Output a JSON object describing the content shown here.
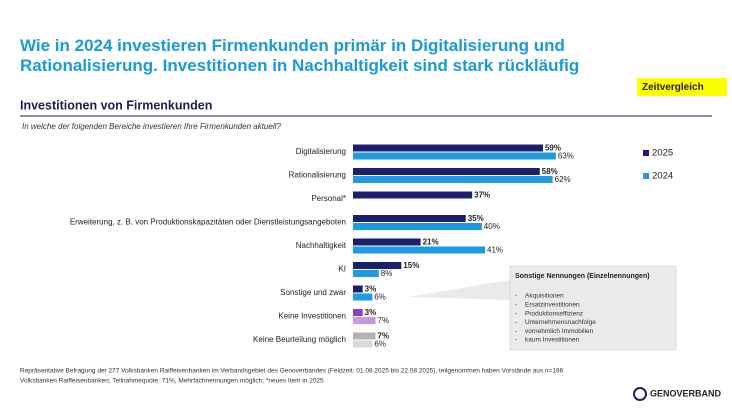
{
  "header": {
    "title": [
      "Wie in 2024 investieren Firmenkunden primär in Digitalisierung und",
      "Rationalisierung. Investitionen in Nachhaltigkeit sind stark rückläufig"
    ]
  },
  "badge": "Zeitvergleich",
  "chart_data": {
    "type": "bar",
    "orientation": "horizontal",
    "title": "Investitionen von Firmenkunden",
    "subtitle": "In welche der folgenden Bereiche investieren Ihre Firmenkunden aktuell?",
    "categories": [
      "Digitalisierung",
      "Rationalisierung",
      "Personal*",
      "Erweiterung, z. B. von Produktionskapazitäten oder Dienstleistungsangeboten",
      "Nachhaltigkeit",
      "KI",
      "Sonstige und zwar",
      "Keine Investitionen",
      "Keine Beurteilung möglich"
    ],
    "series": [
      {
        "name": "2025",
        "color": "#1c1f6e",
        "point_colors": [
          "#1c1f6e",
          "#1c1f6e",
          "#1c1f6e",
          "#1c1f6e",
          "#1c1f6e",
          "#1c1f6e",
          "#1c1f6e",
          "#8a3fbf",
          "#b3b3b3"
        ],
        "values": [
          59,
          58,
          37,
          35,
          21,
          15,
          3,
          3,
          7
        ],
        "value_labels": [
          "59%",
          "58%",
          "37%",
          "35%",
          "21%",
          "15%",
          "3%",
          "3%",
          "7%"
        ]
      },
      {
        "name": "2024",
        "color": "#1e9be0",
        "point_colors": [
          "#1e9be0",
          "#1e9be0",
          "#1e9be0",
          "#1e9be0",
          "#1e9be0",
          "#1e9be0",
          "#1e9be0",
          "#c797e6",
          "#d9d9d9"
        ],
        "values": [
          63,
          62,
          null,
          40,
          41,
          8,
          6,
          7,
          6
        ],
        "value_labels": [
          "63%",
          "62%",
          null,
          "40%",
          "41%",
          "8%",
          "6%",
          "7%",
          "6%"
        ]
      }
    ],
    "legend": "right"
  },
  "callout": {
    "title": "Sonstige Nennungen (Einzelnennungen)",
    "items": [
      "Akquisitionen",
      "Ersatzinvestitionen",
      "Produktionseffizienz",
      "Unternehmensnachfolge",
      "vornehmlich Immobilien",
      "kaum Investitionen"
    ]
  },
  "footnote": [
    "Repräsentative Befragung der 277 Volksbanken Raiffeisenbanken im Verbandsgebiet des Genoverbandes (Feldzeit: 01.08.2025 bis 22.08.2025), teilgenommen haben Vorstände aus n=196",
    "Volksbanken Raiffeisenbanken; Teilnahmequote: 71%, Mehrfachnennungen möglich; *neues Item in 2025"
  ],
  "logo": "GENOVERBAND"
}
